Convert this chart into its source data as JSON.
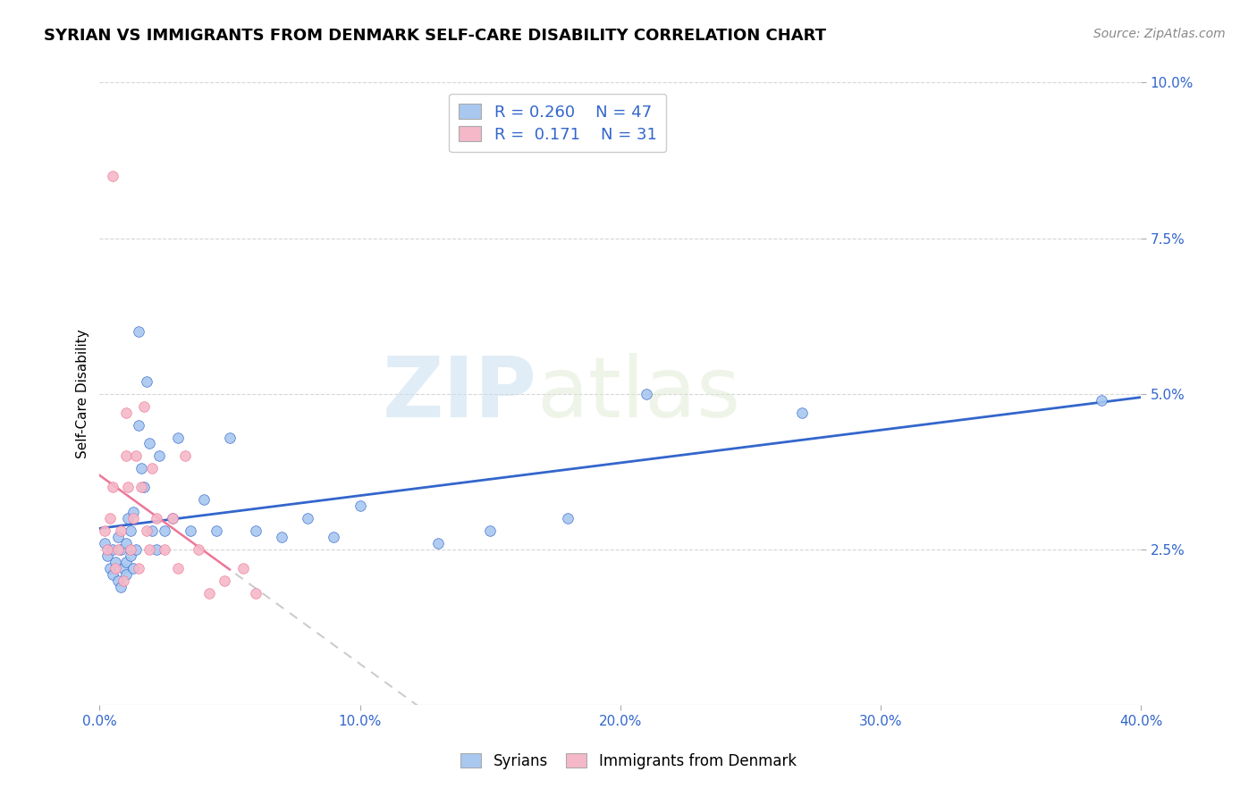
{
  "title": "SYRIAN VS IMMIGRANTS FROM DENMARK SELF-CARE DISABILITY CORRELATION CHART",
  "source": "Source: ZipAtlas.com",
  "ylabel": "Self-Care Disability",
  "xlim": [
    0.0,
    0.4
  ],
  "ylim": [
    0.0,
    0.1
  ],
  "background_color": "#ffffff",
  "watermark_zip": "ZIP",
  "watermark_atlas": "atlas",
  "legend_R1": "0.260",
  "legend_N1": "47",
  "legend_R2": "0.171",
  "legend_N2": "31",
  "legend_label1": "Syrians",
  "legend_label2": "Immigrants from Denmark",
  "color_syrians": "#a8c8f0",
  "color_denmark": "#f5b8c8",
  "trendline_color_syrians": "#3366cc",
  "trendline_color_denmark": "#ee7799",
  "syrians_x": [
    0.002,
    0.003,
    0.004,
    0.005,
    0.005,
    0.006,
    0.007,
    0.007,
    0.008,
    0.008,
    0.009,
    0.01,
    0.01,
    0.01,
    0.011,
    0.012,
    0.012,
    0.013,
    0.013,
    0.014,
    0.015,
    0.015,
    0.016,
    0.017,
    0.018,
    0.019,
    0.02,
    0.022,
    0.023,
    0.025,
    0.028,
    0.03,
    0.035,
    0.04,
    0.045,
    0.05,
    0.06,
    0.07,
    0.08,
    0.09,
    0.1,
    0.13,
    0.15,
    0.18,
    0.21,
    0.27,
    0.385
  ],
  "syrians_y": [
    0.026,
    0.024,
    0.022,
    0.021,
    0.025,
    0.023,
    0.02,
    0.027,
    0.019,
    0.025,
    0.022,
    0.026,
    0.021,
    0.023,
    0.03,
    0.028,
    0.024,
    0.022,
    0.031,
    0.025,
    0.06,
    0.045,
    0.038,
    0.035,
    0.052,
    0.042,
    0.028,
    0.025,
    0.04,
    0.028,
    0.03,
    0.043,
    0.028,
    0.033,
    0.028,
    0.043,
    0.028,
    0.027,
    0.03,
    0.027,
    0.032,
    0.026,
    0.028,
    0.03,
    0.05,
    0.047,
    0.049
  ],
  "denmark_x": [
    0.002,
    0.003,
    0.004,
    0.005,
    0.005,
    0.006,
    0.007,
    0.008,
    0.009,
    0.01,
    0.01,
    0.011,
    0.012,
    0.013,
    0.014,
    0.015,
    0.016,
    0.017,
    0.018,
    0.019,
    0.02,
    0.022,
    0.025,
    0.028,
    0.03,
    0.033,
    0.038,
    0.042,
    0.048,
    0.055,
    0.06
  ],
  "denmark_y": [
    0.028,
    0.025,
    0.03,
    0.085,
    0.035,
    0.022,
    0.025,
    0.028,
    0.02,
    0.047,
    0.04,
    0.035,
    0.025,
    0.03,
    0.04,
    0.022,
    0.035,
    0.048,
    0.028,
    0.025,
    0.038,
    0.03,
    0.025,
    0.03,
    0.022,
    0.04,
    0.025,
    0.018,
    0.02,
    0.022,
    0.018
  ]
}
